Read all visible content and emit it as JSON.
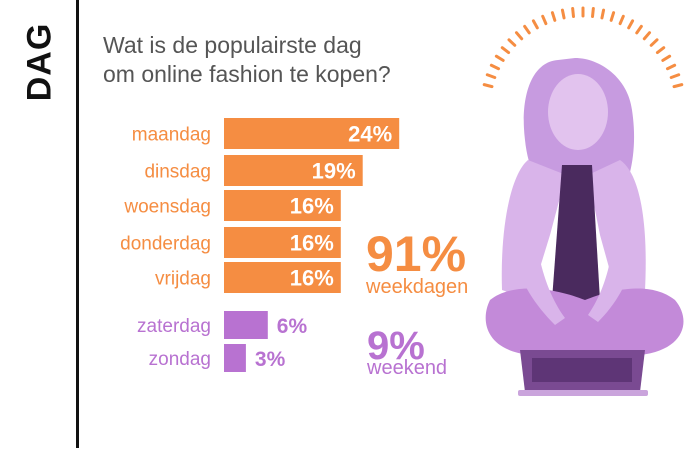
{
  "side_label": "DAG",
  "title": {
    "line1": "Wat is de populairste dag",
    "line2": "om online fashion te kopen?"
  },
  "colors": {
    "weekday": "#f58d42",
    "weekend": "#b872d1",
    "title": "#555555",
    "accent_dots": "#f58d42"
  },
  "summary": {
    "weekdays_value": "91%",
    "weekdays_label": "weekdagen",
    "weekend_value": "9%",
    "weekend_label": "weekend"
  },
  "chart_data": {
    "type": "bar",
    "orientation": "horizontal",
    "categories": [
      "maandag",
      "dinsdag",
      "woensdag",
      "donderdag",
      "vrijdag",
      "zaterdag",
      "zondag"
    ],
    "values": [
      24,
      19,
      16,
      16,
      16,
      6,
      3
    ],
    "value_labels": [
      "24%",
      "19%",
      "16%",
      "16%",
      "16%",
      "6%",
      "3%"
    ],
    "groups": [
      "weekday",
      "weekday",
      "weekday",
      "weekday",
      "weekday",
      "weekend",
      "weekend"
    ],
    "unit": "%",
    "xlim": [
      0,
      24
    ],
    "grid": false,
    "legend": "none"
  }
}
